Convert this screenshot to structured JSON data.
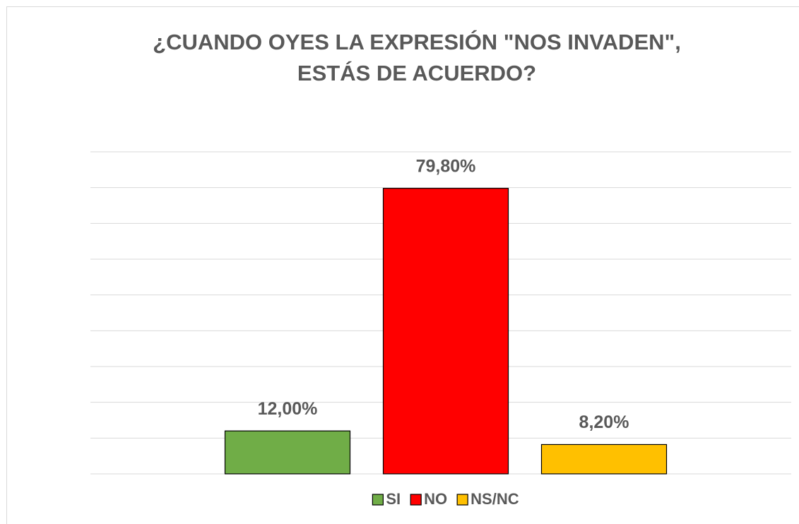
{
  "chart_data": {
    "type": "bar",
    "title": [
      "¿CUANDO OYES LA EXPRESIÓN \"NOS INVADEN\",",
      "ESTÁS DE ACUERDO?"
    ],
    "categories": [
      null
    ],
    "series": [
      {
        "name": "SI",
        "color": "#70ad47",
        "values": [
          12
        ],
        "value_labels": [
          "12,00%"
        ]
      },
      {
        "name": "NO",
        "color": "#ff0000",
        "values": [
          79.8
        ],
        "value_labels": [
          "79,80%"
        ]
      },
      {
        "name": "NS/NC",
        "color": "#ffc000",
        "values": [
          8.2
        ],
        "value_labels": [
          "8,20%"
        ]
      }
    ],
    "ylim": [
      0,
      90
    ],
    "yticks": [
      0,
      10,
      20,
      30,
      40,
      50,
      60,
      70,
      80,
      90
    ],
    "grid": true,
    "legend": "bottom"
  }
}
